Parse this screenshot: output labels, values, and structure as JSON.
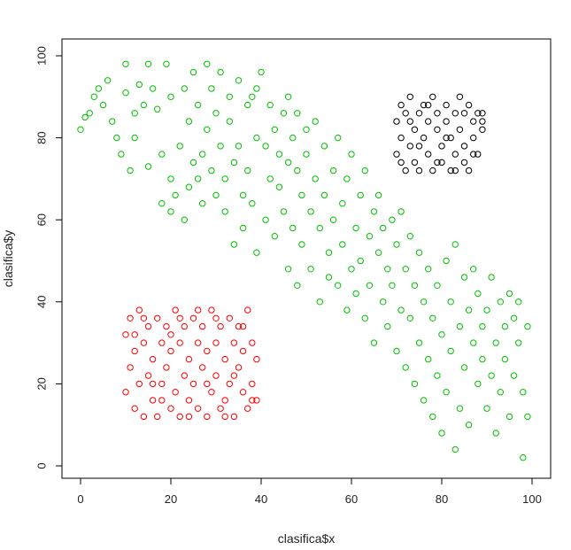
{
  "chart_data": {
    "type": "scatter",
    "title": "",
    "xlabel": "clasifica$x",
    "ylabel": "clasifica$y",
    "xlim": [
      0,
      100
    ],
    "ylim": [
      0,
      100
    ],
    "x_ticks": [
      "0",
      "20",
      "40",
      "60",
      "80",
      "100"
    ],
    "y_ticks": [
      "0",
      "20",
      "40",
      "60",
      "80",
      "100"
    ],
    "grid": false,
    "legend": "none",
    "marker": "open-circle",
    "series": [
      {
        "color": "#00c000",
        "points": [
          [
            0,
            82
          ],
          [
            1,
            85
          ],
          [
            2,
            86
          ],
          [
            3,
            90
          ],
          [
            4,
            92
          ],
          [
            5,
            88
          ],
          [
            6,
            94
          ],
          [
            7,
            84
          ],
          [
            8,
            80
          ],
          [
            9,
            76
          ],
          [
            10,
            91
          ],
          [
            10,
            98
          ],
          [
            11,
            72
          ],
          [
            12,
            86
          ],
          [
            12,
            80
          ],
          [
            13,
            93
          ],
          [
            14,
            88
          ],
          [
            15,
            73
          ],
          [
            15,
            98
          ],
          [
            16,
            92
          ],
          [
            17,
            87
          ],
          [
            18,
            64
          ],
          [
            18,
            76
          ],
          [
            19,
            98
          ],
          [
            20,
            62
          ],
          [
            20,
            70
          ],
          [
            20,
            90
          ],
          [
            21,
            66
          ],
          [
            22,
            78
          ],
          [
            23,
            92
          ],
          [
            23,
            60
          ],
          [
            24,
            84
          ],
          [
            24,
            68
          ],
          [
            25,
            96
          ],
          [
            25,
            74
          ],
          [
            26,
            70
          ],
          [
            26,
            88
          ],
          [
            27,
            64
          ],
          [
            27,
            76
          ],
          [
            28,
            82
          ],
          [
            28,
            98
          ],
          [
            29,
            72
          ],
          [
            29,
            92
          ],
          [
            30,
            66
          ],
          [
            30,
            86
          ],
          [
            31,
            78
          ],
          [
            31,
            96
          ],
          [
            32,
            62
          ],
          [
            32,
            70
          ],
          [
            33,
            84
          ],
          [
            33,
            90
          ],
          [
            34,
            74
          ],
          [
            34,
            54
          ],
          [
            35,
            78
          ],
          [
            35,
            94
          ],
          [
            36,
            66
          ],
          [
            36,
            58
          ],
          [
            37,
            72
          ],
          [
            37,
            88
          ],
          [
            38,
            90
          ],
          [
            38,
            64
          ],
          [
            39,
            80
          ],
          [
            39,
            52
          ],
          [
            39,
            92
          ],
          [
            40,
            96
          ],
          [
            41,
            78
          ],
          [
            41,
            60
          ],
          [
            42,
            88
          ],
          [
            42,
            70
          ],
          [
            43,
            82
          ],
          [
            43,
            56
          ],
          [
            44,
            76
          ],
          [
            44,
            68
          ],
          [
            45,
            86
          ],
          [
            45,
            62
          ],
          [
            46,
            74
          ],
          [
            46,
            48
          ],
          [
            46,
            90
          ],
          [
            47,
            80
          ],
          [
            47,
            58
          ],
          [
            48,
            72
          ],
          [
            48,
            44
          ],
          [
            48,
            86
          ],
          [
            49,
            66
          ],
          [
            49,
            54
          ],
          [
            50,
            76
          ],
          [
            50,
            82
          ],
          [
            51,
            62
          ],
          [
            51,
            48
          ],
          [
            52,
            70
          ],
          [
            52,
            84
          ],
          [
            53,
            58
          ],
          [
            53,
            40
          ],
          [
            54,
            66
          ],
          [
            54,
            78
          ],
          [
            55,
            52
          ],
          [
            55,
            46
          ],
          [
            56,
            72
          ],
          [
            56,
            60
          ],
          [
            57,
            44
          ],
          [
            57,
            80
          ],
          [
            58,
            64
          ],
          [
            58,
            54
          ],
          [
            59,
            70
          ],
          [
            59,
            38
          ],
          [
            60,
            48
          ],
          [
            60,
            76
          ],
          [
            61,
            58
          ],
          [
            61,
            42
          ],
          [
            62,
            66
          ],
          [
            62,
            50
          ],
          [
            63,
            36
          ],
          [
            63,
            72
          ],
          [
            64,
            56
          ],
          [
            64,
            44
          ],
          [
            65,
            62
          ],
          [
            65,
            30
          ],
          [
            66,
            52
          ],
          [
            66,
            66
          ],
          [
            67,
            40
          ],
          [
            67,
            58
          ],
          [
            68,
            48
          ],
          [
            68,
            34
          ],
          [
            69,
            60
          ],
          [
            69,
            44
          ],
          [
            70,
            54
          ],
          [
            70,
            28
          ],
          [
            71,
            38
          ],
          [
            71,
            62
          ],
          [
            72,
            48
          ],
          [
            72,
            24
          ],
          [
            73,
            56
          ],
          [
            73,
            36
          ],
          [
            74,
            44
          ],
          [
            74,
            20
          ],
          [
            75,
            52
          ],
          [
            75,
            30
          ],
          [
            76,
            40
          ],
          [
            76,
            16
          ],
          [
            77,
            48
          ],
          [
            77,
            26
          ],
          [
            78,
            36
          ],
          [
            78,
            12
          ],
          [
            79,
            44
          ],
          [
            79,
            22
          ],
          [
            80,
            32
          ],
          [
            80,
            8
          ],
          [
            81,
            50
          ],
          [
            81,
            18
          ],
          [
            82,
            40
          ],
          [
            82,
            28
          ],
          [
            83,
            4
          ],
          [
            83,
            54
          ],
          [
            84,
            34
          ],
          [
            84,
            14
          ],
          [
            85,
            46
          ],
          [
            85,
            24
          ],
          [
            86,
            38
          ],
          [
            86,
            10
          ],
          [
            87,
            30
          ],
          [
            87,
            48
          ],
          [
            88,
            20
          ],
          [
            88,
            42
          ],
          [
            89,
            26
          ],
          [
            89,
            34
          ],
          [
            90,
            14
          ],
          [
            90,
            38
          ],
          [
            91,
            46
          ],
          [
            91,
            22
          ],
          [
            92,
            30
          ],
          [
            92,
            8
          ],
          [
            93,
            40
          ],
          [
            93,
            18
          ],
          [
            94,
            34
          ],
          [
            94,
            26
          ],
          [
            95,
            42
          ],
          [
            95,
            12
          ],
          [
            96,
            22
          ],
          [
            96,
            36
          ],
          [
            97,
            30
          ],
          [
            97,
            40
          ],
          [
            98,
            18
          ],
          [
            98,
            2
          ],
          [
            99,
            34
          ],
          [
            99,
            12
          ]
        ]
      },
      {
        "color": "#ff0000",
        "points": [
          [
            10,
            32
          ],
          [
            10,
            18
          ],
          [
            11,
            36
          ],
          [
            11,
            24
          ],
          [
            12,
            14
          ],
          [
            12,
            28
          ],
          [
            13,
            38
          ],
          [
            13,
            20
          ],
          [
            14,
            30
          ],
          [
            14,
            12
          ],
          [
            15,
            34
          ],
          [
            15,
            22
          ],
          [
            16,
            16
          ],
          [
            16,
            26
          ],
          [
            17,
            36
          ],
          [
            17,
            12
          ],
          [
            18,
            30
          ],
          [
            18,
            20
          ],
          [
            19,
            34
          ],
          [
            19,
            24
          ],
          [
            20,
            14
          ],
          [
            20,
            28
          ],
          [
            21,
            38
          ],
          [
            21,
            18
          ],
          [
            22,
            30
          ],
          [
            22,
            12
          ],
          [
            23,
            34
          ],
          [
            23,
            22
          ],
          [
            24,
            16
          ],
          [
            24,
            26
          ],
          [
            25,
            36
          ],
          [
            25,
            20
          ],
          [
            26,
            30
          ],
          [
            26,
            14
          ],
          [
            27,
            34
          ],
          [
            27,
            24
          ],
          [
            28,
            12
          ],
          [
            28,
            28
          ],
          [
            29,
            38
          ],
          [
            29,
            18
          ],
          [
            30,
            30
          ],
          [
            30,
            22
          ],
          [
            31,
            34
          ],
          [
            31,
            14
          ],
          [
            32,
            16
          ],
          [
            32,
            26
          ],
          [
            33,
            36
          ],
          [
            33,
            20
          ],
          [
            34,
            30
          ],
          [
            34,
            12
          ],
          [
            35,
            34
          ],
          [
            35,
            24
          ],
          [
            36,
            18
          ],
          [
            36,
            28
          ],
          [
            37,
            38
          ],
          [
            37,
            14
          ],
          [
            38,
            30
          ],
          [
            38,
            20
          ],
          [
            39,
            26
          ],
          [
            39,
            16
          ],
          [
            12,
            32
          ],
          [
            14,
            36
          ],
          [
            16,
            20
          ],
          [
            18,
            16
          ],
          [
            20,
            32
          ],
          [
            22,
            36
          ],
          [
            24,
            12
          ],
          [
            26,
            38
          ],
          [
            28,
            20
          ],
          [
            30,
            36
          ],
          [
            32,
            12
          ],
          [
            34,
            22
          ],
          [
            36,
            34
          ],
          [
            38,
            16
          ]
        ]
      },
      {
        "color": "#000000",
        "points": [
          [
            70,
            84
          ],
          [
            70,
            76
          ],
          [
            71,
            88
          ],
          [
            71,
            80
          ],
          [
            72,
            72
          ],
          [
            72,
            86
          ],
          [
            73,
            78
          ],
          [
            73,
            90
          ],
          [
            74,
            74
          ],
          [
            74,
            82
          ],
          [
            75,
            86
          ],
          [
            75,
            72
          ],
          [
            76,
            80
          ],
          [
            76,
            88
          ],
          [
            77,
            76
          ],
          [
            77,
            84
          ],
          [
            78,
            90
          ],
          [
            78,
            72
          ],
          [
            79,
            82
          ],
          [
            79,
            86
          ],
          [
            80,
            74
          ],
          [
            80,
            78
          ],
          [
            81,
            88
          ],
          [
            81,
            84
          ],
          [
            82,
            72
          ],
          [
            82,
            80
          ],
          [
            83,
            86
          ],
          [
            83,
            76
          ],
          [
            84,
            90
          ],
          [
            84,
            82
          ],
          [
            85,
            74
          ],
          [
            85,
            78
          ],
          [
            86,
            88
          ],
          [
            86,
            72
          ],
          [
            87,
            84
          ],
          [
            87,
            80
          ],
          [
            88,
            76
          ],
          [
            88,
            86
          ],
          [
            89,
            82
          ],
          [
            89,
            86
          ],
          [
            71,
            74
          ],
          [
            73,
            84
          ],
          [
            75,
            78
          ],
          [
            77,
            88
          ],
          [
            79,
            74
          ],
          [
            81,
            80
          ],
          [
            83,
            72
          ],
          [
            85,
            86
          ],
          [
            87,
            76
          ],
          [
            89,
            84
          ]
        ]
      }
    ]
  }
}
